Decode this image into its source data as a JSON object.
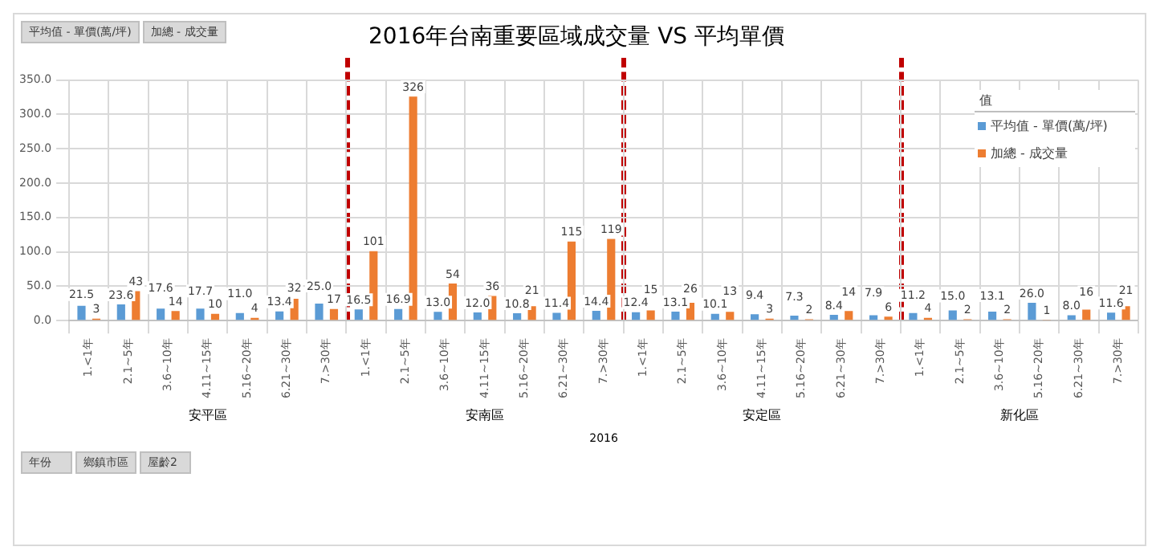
{
  "chart_data": {
    "type": "bar",
    "title": "2016年台南重要區域成交量 VS 平均單價",
    "categories": [
      "1.<1年",
      "2.1~5年",
      "3.6~10年",
      "4.11~15年",
      "5.16~20年",
      "6.21~30年",
      "7.>30年",
      "1.<1年",
      "2.1~5年",
      "3.6~10年",
      "4.11~15年",
      "5.16~20年",
      "6.21~30年",
      "7.>30年",
      "1.<1年",
      "2.1~5年",
      "3.6~10年",
      "4.11~15年",
      "5.16~20年",
      "6.21~30年",
      "7.>30年",
      "1.<1年",
      "2.1~5年",
      "3.6~10年",
      "5.16~20年",
      "6.21~30年",
      "7.>30年"
    ],
    "series": [
      {
        "name": "平均值 - 單價(萬/坪)",
        "color": "#5b9bd5",
        "values": [
          21.5,
          23.6,
          17.6,
          17.7,
          11.0,
          13.4,
          25.0,
          16.5,
          16.9,
          13.0,
          12.0,
          10.8,
          11.4,
          14.4,
          12.4,
          13.1,
          10.1,
          9.4,
          7.3,
          8.4,
          7.9,
          11.2,
          15.0,
          13.1,
          26.0,
          8.0,
          11.6
        ],
        "value_labels": [
          "21.5",
          "23.6",
          "17.6",
          "17.7",
          "11.0",
          "13.4",
          "25.0",
          "16.5",
          "16.9",
          "13.0",
          "12.0",
          "10.8",
          "11.4",
          "14.4",
          "12.4",
          "13.1",
          "10.1",
          "9.4",
          "7.3",
          "8.4",
          "7.9",
          "11.2",
          "15.0",
          "13.1",
          "26.0",
          "8.0",
          "11.6"
        ]
      },
      {
        "name": "加總 - 成交量",
        "color": "#ed7d31",
        "values": [
          3,
          43,
          14,
          10,
          4,
          32,
          17,
          101,
          326,
          54,
          36,
          21,
          115,
          119,
          15,
          26,
          13,
          3,
          2,
          14,
          6,
          4,
          2,
          2,
          1,
          16,
          21
        ],
        "value_labels": [
          "3",
          "43",
          "14",
          "10",
          "4",
          "32",
          "17",
          "101",
          "326",
          "54",
          "36",
          "21",
          "115",
          "119",
          "15",
          "26",
          "13",
          "3",
          "2",
          "14",
          "6",
          "4",
          "2",
          "2",
          "1",
          "16",
          "21"
        ]
      }
    ],
    "ylim": [
      0,
      350
    ],
    "yticks": [
      {
        "value": 0,
        "label": "0.0"
      },
      {
        "value": 50,
        "label": "50.0"
      },
      {
        "value": 100,
        "label": "100.0"
      },
      {
        "value": 150,
        "label": "150.0"
      },
      {
        "value": 200,
        "label": "200.0"
      },
      {
        "value": 250,
        "label": "250.0"
      },
      {
        "value": 300,
        "label": "300.0"
      },
      {
        "value": 350,
        "label": "350.0"
      }
    ],
    "grid": true,
    "legend": "top right",
    "legend_title": "值",
    "annotations": [
      "安平區",
      "安南區",
      "安定區",
      "新化區",
      "2016",
      "平均值 - 單價(萬/坪)",
      "加總 - 成交量",
      "年份",
      "鄉鎮市區",
      "屋齡2"
    ]
  }
}
